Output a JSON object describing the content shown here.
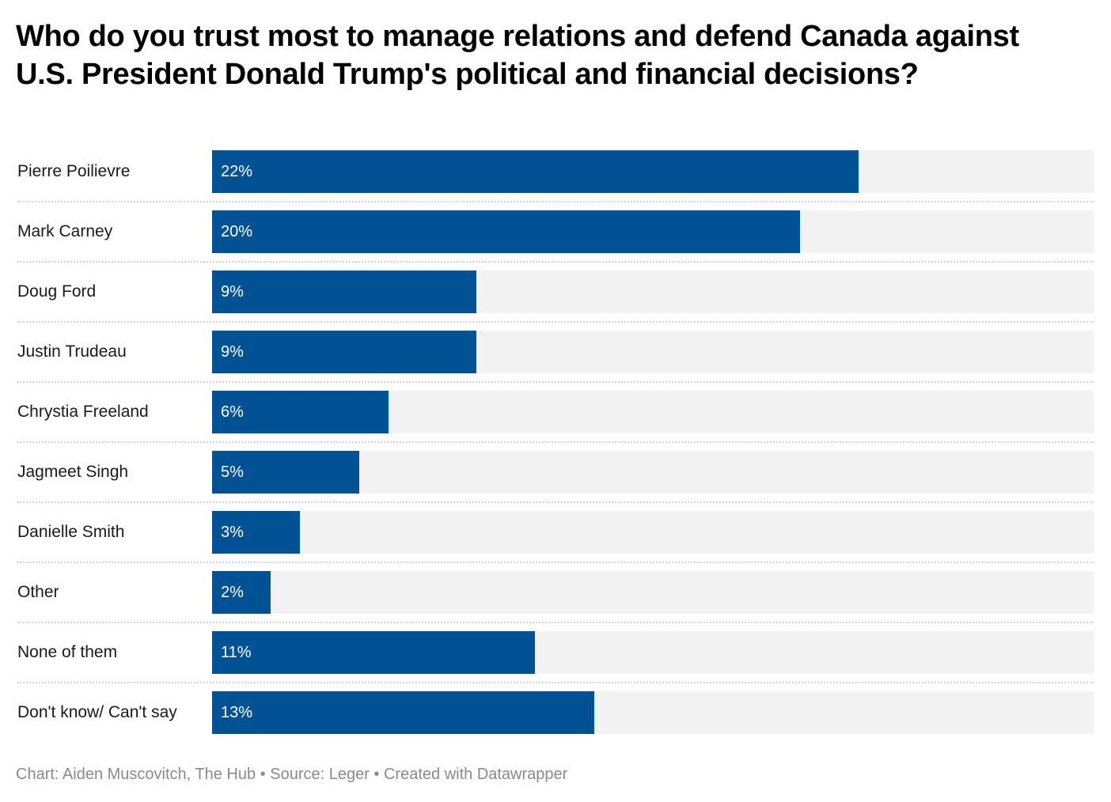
{
  "title": "Who do you trust most to manage relations and defend Canada against U.S. President Donald Trump's political and financial decisions?",
  "footer": "Chart: Aiden Muscovitch, The Hub • Source: Leger • Created with Datawrapper",
  "colors": {
    "bar": "#005295",
    "track": "#f2f2f2",
    "label": "#1a1a1a",
    "value_label": "#ffffff"
  },
  "chart_data": {
    "type": "bar",
    "orientation": "horizontal",
    "title": "Who do you trust most to manage relations and defend Canada against U.S. President Donald Trump's political and financial decisions?",
    "xlabel": "",
    "ylabel": "",
    "xlim": [
      0,
      30
    ],
    "grid": false,
    "unit": "%",
    "categories": [
      "Pierre Poilievre",
      "Mark Carney",
      "Doug Ford",
      "Justin Trudeau",
      "Chrystia Freeland",
      "Jagmeet Singh",
      "Danielle Smith",
      "Other",
      "None of them",
      "Don't know/ Can't say"
    ],
    "values": [
      22,
      20,
      9,
      9,
      6,
      5,
      3,
      2,
      11,
      13
    ],
    "value_labels": [
      "22%",
      "20%",
      "9%",
      "9%",
      "6%",
      "5%",
      "3%",
      "2%",
      "11%",
      "13%"
    ]
  }
}
